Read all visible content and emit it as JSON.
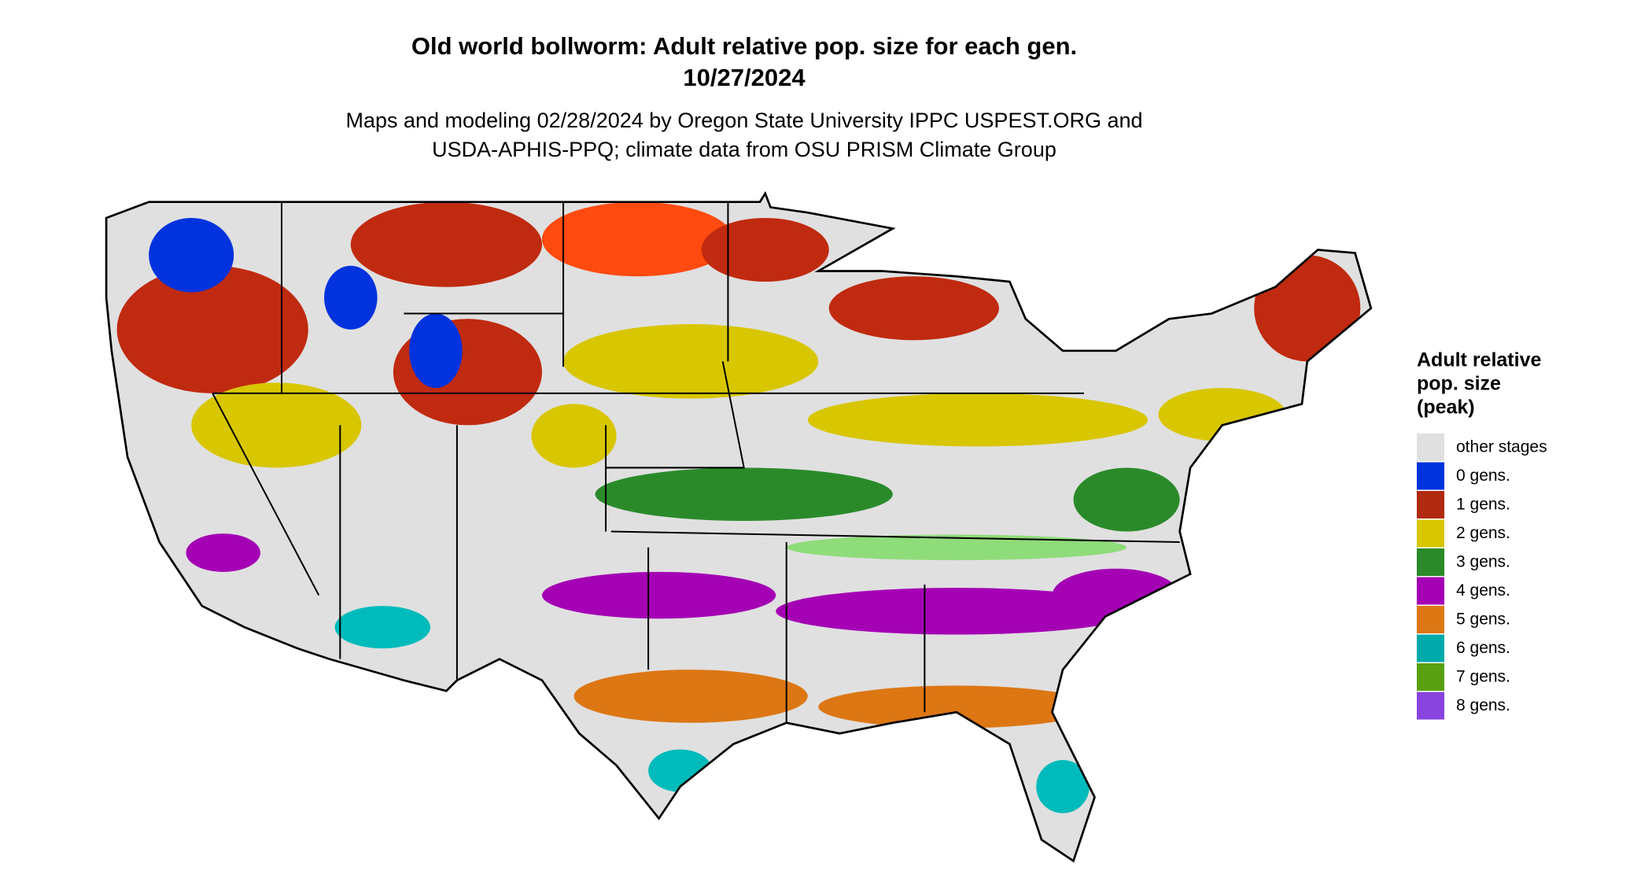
{
  "header": {
    "title": "Old world bollworm: Adult relative pop. size for each gen.",
    "date": "10/27/2024",
    "subtitle_line1": "Maps and modeling 02/28/2024 by Oregon State University IPPC USPEST.ORG and",
    "subtitle_line2": "USDA-APHIS-PPQ; climate data from OSU PRISM Climate Group"
  },
  "legend": {
    "title_lines": [
      "Adult relative",
      "pop. size",
      "(peak)"
    ],
    "items": [
      {
        "label": "other stages",
        "color": "#e0e0e0"
      },
      {
        "label": "0 gens.",
        "color": "#0033dd"
      },
      {
        "label": "1 gens.",
        "color": "#b02a12"
      },
      {
        "label": "2 gens.",
        "color": "#d8c600"
      },
      {
        "label": "3 gens.",
        "color": "#2a8a2a"
      },
      {
        "label": "4 gens.",
        "color": "#a400b4"
      },
      {
        "label": "5 gens.",
        "color": "#dd7714"
      },
      {
        "label": "6 gens.",
        "color": "#00aaaa"
      },
      {
        "label": "7 gens.",
        "color": "#5aa010"
      },
      {
        "label": "8 gens.",
        "color": "#8844dd"
      }
    ]
  }
}
